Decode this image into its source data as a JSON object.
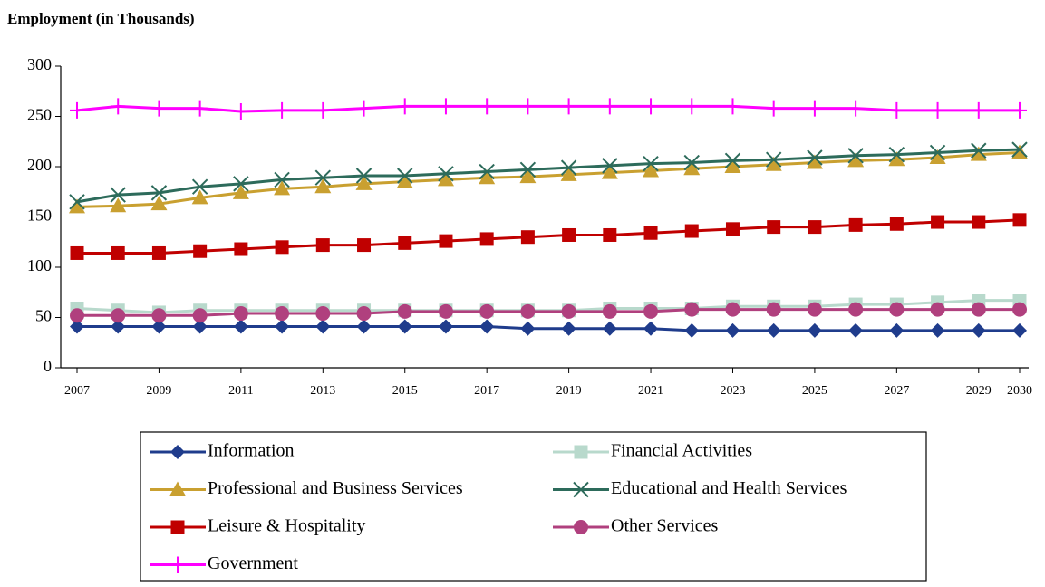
{
  "chart_data": {
    "type": "line",
    "title": "Employment (in Thousands)",
    "x": [
      2007,
      2008,
      2009,
      2010,
      2011,
      2012,
      2013,
      2014,
      2015,
      2016,
      2017,
      2018,
      2019,
      2020,
      2021,
      2022,
      2023,
      2024,
      2025,
      2026,
      2027,
      2028,
      2029,
      2030
    ],
    "xlim": [
      2007,
      2030
    ],
    "xticks": [
      2007,
      2009,
      2011,
      2013,
      2015,
      2017,
      2019,
      2021,
      2023,
      2025,
      2027,
      2029,
      2030
    ],
    "ylim": [
      0,
      300
    ],
    "yticks": [
      0,
      50,
      100,
      150,
      200,
      250,
      300
    ],
    "series": [
      {
        "name": "Information",
        "color": "#1f3c8c",
        "marker": "diamond",
        "values": [
          41,
          41,
          41,
          41,
          41,
          41,
          41,
          41,
          41,
          41,
          41,
          39,
          39,
          39,
          39,
          37,
          37,
          37,
          37,
          37,
          37,
          37,
          37,
          37
        ]
      },
      {
        "name": "Financial Activities",
        "color": "#b8d9cc",
        "marker": "square",
        "values": [
          59,
          57,
          55,
          57,
          57,
          57,
          57,
          57,
          57,
          57,
          57,
          57,
          57,
          59,
          59,
          59,
          61,
          61,
          61,
          63,
          63,
          65,
          67,
          67
        ]
      },
      {
        "name": "Professional and Business Services",
        "color": "#c9a030",
        "marker": "triangle",
        "values": [
          160,
          161,
          163,
          169,
          174,
          178,
          180,
          183,
          185,
          187,
          189,
          190,
          192,
          194,
          196,
          198,
          200,
          202,
          204,
          206,
          207,
          209,
          212,
          214
        ]
      },
      {
        "name": "Educational and Health Services",
        "color": "#2d6b5b",
        "marker": "x",
        "values": [
          165,
          172,
          174,
          180,
          183,
          187,
          189,
          191,
          191,
          193,
          195,
          197,
          199,
          201,
          203,
          204,
          206,
          207,
          209,
          211,
          212,
          214,
          216,
          217
        ]
      },
      {
        "name": "Leisure & Hospitality",
        "color": "#c00000",
        "marker": "square",
        "values": [
          114,
          114,
          114,
          116,
          118,
          120,
          122,
          122,
          124,
          126,
          128,
          130,
          132,
          132,
          134,
          136,
          138,
          140,
          140,
          142,
          143,
          145,
          145,
          147
        ]
      },
      {
        "name": "Other Services",
        "color": "#b0407e",
        "marker": "circle",
        "values": [
          52,
          52,
          52,
          52,
          54,
          54,
          54,
          54,
          56,
          56,
          56,
          56,
          56,
          56,
          56,
          58,
          58,
          58,
          58,
          58,
          58,
          58,
          58,
          58
        ]
      },
      {
        "name": "Government",
        "color": "#ff00ff",
        "marker": "plus",
        "values": [
          256,
          260,
          258,
          258,
          255,
          256,
          256,
          258,
          260,
          260,
          260,
          260,
          260,
          260,
          260,
          260,
          260,
          258,
          258,
          258,
          256,
          256,
          256,
          256
        ]
      }
    ]
  }
}
